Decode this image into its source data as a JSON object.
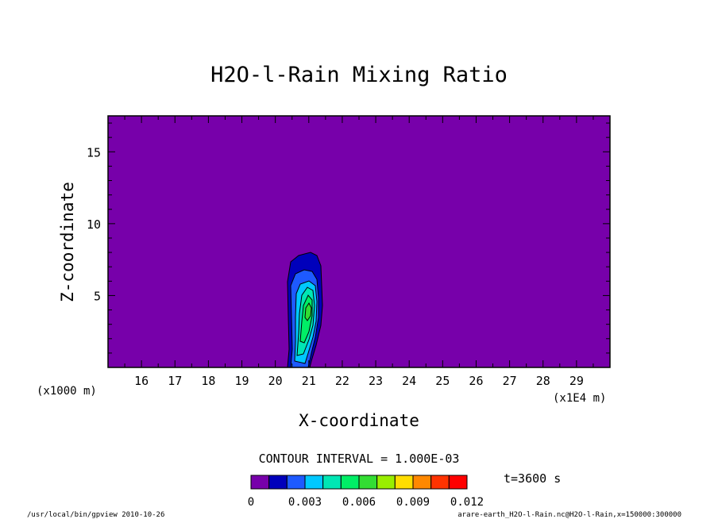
{
  "chart_data": {
    "type": "contour",
    "title": "H2O-l-Rain Mixing Ratio",
    "xlabel": "X-coordinate",
    "ylabel": "Z-coordinate",
    "x_unit_left": "(x1000 m)",
    "x_unit_right": "(x1E4 m)",
    "x_ticks": [
      16,
      17,
      18,
      19,
      20,
      21,
      22,
      23,
      24,
      25,
      26,
      27,
      28,
      29
    ],
    "y_ticks": [
      5,
      10,
      15
    ],
    "xlim": [
      15.0,
      30.0
    ],
    "ylim": [
      0,
      17.5
    ],
    "contour_interval_label": "CONTOUR INTERVAL = 1.000E-03",
    "time_label": "t=3600 s",
    "colorbar": {
      "levels": [
        0,
        0.001,
        0.002,
        0.003,
        0.004,
        0.005,
        0.006,
        0.007,
        0.008,
        0.009,
        0.01,
        0.011,
        0.012
      ],
      "tick_labels": [
        "0",
        "0.003",
        "0.006",
        "0.009",
        "0.012"
      ],
      "colors": [
        "#7700aa",
        "#0000bb",
        "#1e5aff",
        "#00c8ff",
        "#00e6b4",
        "#00ee66",
        "#33dd33",
        "#99ee00",
        "#ffdd00",
        "#ff8800",
        "#ff3300",
        "#ff0000",
        "#ff9999"
      ]
    },
    "feature": {
      "description_values": "rain core near x~21 (x1E4 m), z 0-8 km, max ~0.005",
      "max_value": 0.005
    },
    "footer_left": "/usr/local/bin/gpview  2010-10-26",
    "footer_right": "arare-earth_H2O-l-Rain.nc@H2O-l-Rain,x=150000:300000"
  }
}
